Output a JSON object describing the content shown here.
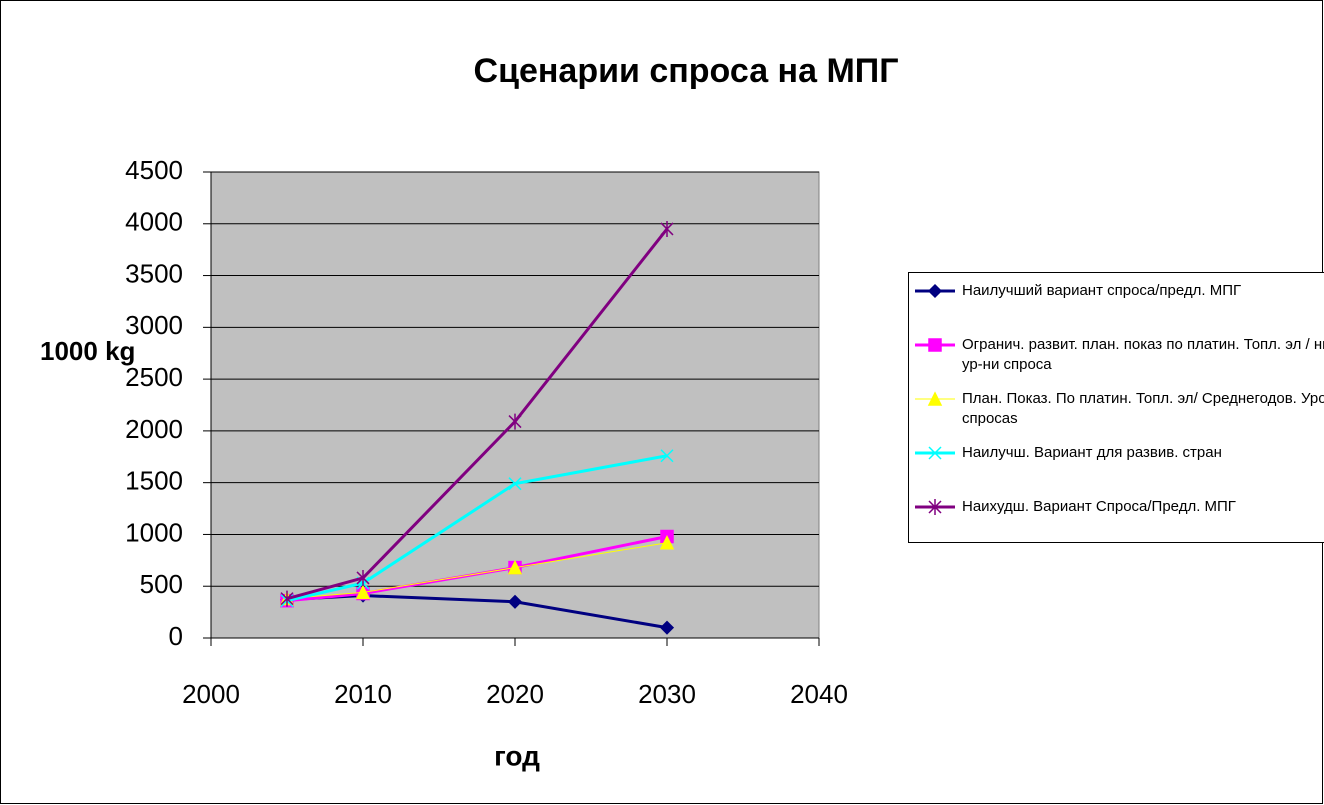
{
  "chart_data": {
    "type": "line",
    "title": "Сценарии спроса на МПГ",
    "x_label": "год",
    "y_label": "1000 kg",
    "x": [
      2005,
      2010,
      2020,
      2030
    ],
    "xlim": [
      2000,
      2040
    ],
    "xticks": [
      2000,
      2010,
      2020,
      2030,
      2040
    ],
    "ylim": [
      0,
      4500
    ],
    "yticks": [
      0,
      500,
      1000,
      1500,
      2000,
      2500,
      3000,
      3500,
      4000,
      4500
    ],
    "grid": true,
    "legend": "right",
    "series": [
      {
        "name": "Наилучший вариант спроса/предл. МПГ",
        "color": "#000080",
        "marker": "diamond",
        "values": [
          370,
          410,
          350,
          100
        ]
      },
      {
        "name": "Огранич. развит. план. показ по платин. Топл. эл / низк. ур-ни спроса",
        "color": "#ff00ff",
        "marker": "square",
        "values": [
          360,
          430,
          680,
          980
        ]
      },
      {
        "name": "План. Показ. По платин. Топл. эл/ Среднегодов. Уровни спросаs",
        "color": "#ffff00",
        "marker": "triangle",
        "values": [
          380,
          440,
          680,
          920
        ]
      },
      {
        "name": "Наилучш. Вариант для развив. стран",
        "color": "#00ffff",
        "marker": "x",
        "values": [
          360,
          530,
          1490,
          1760
        ]
      },
      {
        "name": "Наихудш. Вариант Спроса/Предл. МПГ",
        "color": "#800080",
        "marker": "star",
        "values": [
          380,
          580,
          2090,
          3950
        ]
      }
    ]
  }
}
